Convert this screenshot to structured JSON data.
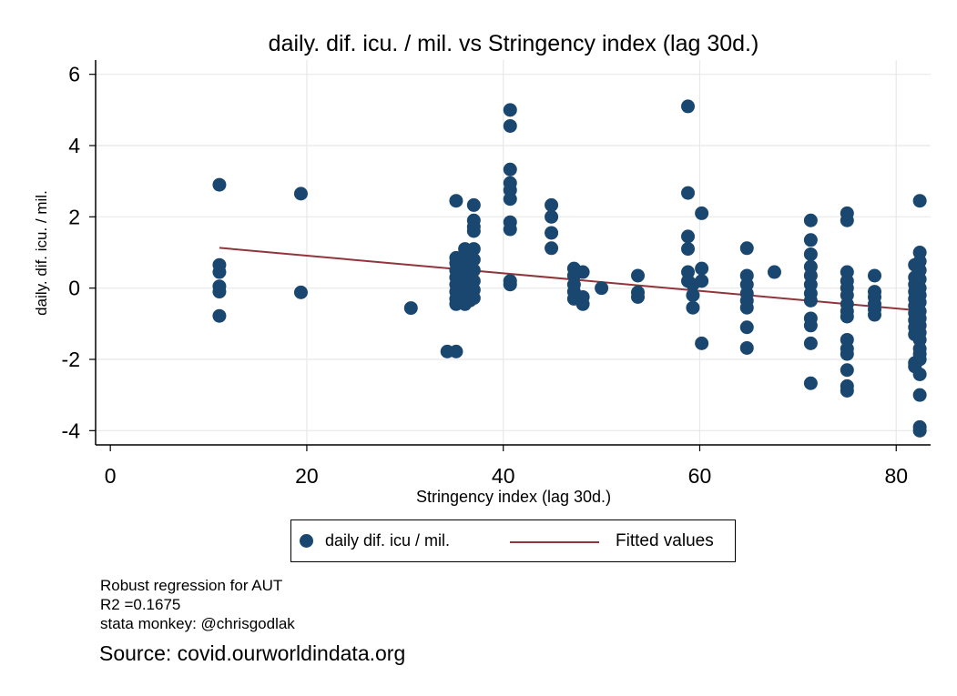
{
  "chart_data": {
    "type": "scatter",
    "title": "daily. dif. icu. / mil. vs Stringency index (lag 30d.)",
    "xlabel": "Stringency index (lag 30d.)",
    "ylabel": "daily. dif. icu. / mil.",
    "xlim": [
      -1.5,
      83.5
    ],
    "ylim": [
      -4.4,
      6.4
    ],
    "xticks": [
      0,
      20,
      40,
      60,
      80
    ],
    "yticks": [
      -4,
      -2,
      0,
      2,
      4,
      6
    ],
    "grid": true,
    "legend_position": "bottom",
    "colors": {
      "points": "#1a476f",
      "fit": "#90353b",
      "grid": "#e8e8e8"
    },
    "series": [
      {
        "name": "daily dif. icu / mil.",
        "kind": "scatter",
        "points": [
          [
            11.1,
            2.9
          ],
          [
            11.1,
            0.65
          ],
          [
            11.1,
            0.45
          ],
          [
            11.1,
            0.05
          ],
          [
            11.1,
            -0.1
          ],
          [
            11.1,
            -0.78
          ],
          [
            19.4,
            2.65
          ],
          [
            19.4,
            -0.12
          ],
          [
            30.6,
            -0.56
          ],
          [
            34.3,
            -1.78
          ],
          [
            35.2,
            -1.78
          ],
          [
            35.2,
            2.45
          ],
          [
            35.2,
            0.85
          ],
          [
            35.2,
            0.7
          ],
          [
            35.2,
            0.5
          ],
          [
            35.2,
            0.3
          ],
          [
            35.2,
            0.1
          ],
          [
            35.2,
            -0.1
          ],
          [
            35.2,
            -0.3
          ],
          [
            35.2,
            -0.45
          ],
          [
            35.7,
            0.8
          ],
          [
            35.7,
            0.4
          ],
          [
            35.7,
            0.0
          ],
          [
            35.7,
            -0.3
          ],
          [
            36.1,
            1.1
          ],
          [
            36.1,
            0.9
          ],
          [
            36.1,
            0.6
          ],
          [
            36.1,
            0.3
          ],
          [
            36.1,
            0.0
          ],
          [
            36.1,
            -0.2
          ],
          [
            36.1,
            -0.45
          ],
          [
            36.6,
            1.0
          ],
          [
            36.6,
            0.7
          ],
          [
            36.6,
            0.4
          ],
          [
            36.6,
            0.1
          ],
          [
            36.6,
            -0.15
          ],
          [
            36.6,
            -0.35
          ],
          [
            37.0,
            2.33
          ],
          [
            37.0,
            1.9
          ],
          [
            37.0,
            1.72
          ],
          [
            37.0,
            1.6
          ],
          [
            37.0,
            1.1
          ],
          [
            37.0,
            0.8
          ],
          [
            37.0,
            0.5
          ],
          [
            37.0,
            0.2
          ],
          [
            37.0,
            -0.05
          ],
          [
            37.0,
            -0.28
          ],
          [
            40.7,
            5.0
          ],
          [
            40.7,
            4.55
          ],
          [
            40.7,
            3.33
          ],
          [
            40.7,
            2.95
          ],
          [
            40.7,
            2.75
          ],
          [
            40.7,
            2.5
          ],
          [
            40.7,
            1.85
          ],
          [
            40.7,
            1.65
          ],
          [
            40.7,
            0.2
          ],
          [
            40.7,
            0.1
          ],
          [
            44.9,
            2.33
          ],
          [
            44.9,
            2.0
          ],
          [
            44.9,
            1.55
          ],
          [
            44.9,
            1.12
          ],
          [
            47.2,
            0.55
          ],
          [
            47.2,
            0.35
          ],
          [
            47.2,
            0.1
          ],
          [
            47.2,
            -0.1
          ],
          [
            47.2,
            -0.3
          ],
          [
            48.1,
            0.45
          ],
          [
            48.1,
            -0.25
          ],
          [
            48.1,
            -0.45
          ],
          [
            50.0,
            0.0
          ],
          [
            53.7,
            0.35
          ],
          [
            53.7,
            -0.12
          ],
          [
            53.7,
            -0.25
          ],
          [
            58.8,
            5.1
          ],
          [
            58.8,
            2.67
          ],
          [
            58.8,
            1.45
          ],
          [
            58.8,
            1.1
          ],
          [
            58.8,
            0.45
          ],
          [
            58.8,
            0.2
          ],
          [
            59.3,
            0.1
          ],
          [
            59.3,
            -0.2
          ],
          [
            59.3,
            -0.55
          ],
          [
            60.2,
            2.1
          ],
          [
            60.2,
            0.55
          ],
          [
            60.2,
            0.2
          ],
          [
            60.2,
            -1.55
          ],
          [
            64.8,
            1.12
          ],
          [
            64.8,
            0.35
          ],
          [
            64.8,
            0.1
          ],
          [
            64.8,
            -0.15
          ],
          [
            64.8,
            -0.35
          ],
          [
            64.8,
            -0.55
          ],
          [
            64.8,
            -1.1
          ],
          [
            64.8,
            -1.68
          ],
          [
            67.6,
            0.45
          ],
          [
            71.3,
            1.9
          ],
          [
            71.3,
            1.35
          ],
          [
            71.3,
            0.95
          ],
          [
            71.3,
            0.6
          ],
          [
            71.3,
            0.35
          ],
          [
            71.3,
            0.1
          ],
          [
            71.3,
            -0.15
          ],
          [
            71.3,
            -0.35
          ],
          [
            71.3,
            -0.85
          ],
          [
            71.3,
            -1.05
          ],
          [
            71.3,
            -1.55
          ],
          [
            71.3,
            -2.67
          ],
          [
            75.0,
            2.1
          ],
          [
            75.0,
            1.9
          ],
          [
            75.0,
            0.45
          ],
          [
            75.0,
            0.2
          ],
          [
            75.0,
            0.0
          ],
          [
            75.0,
            -0.2
          ],
          [
            75.0,
            -0.45
          ],
          [
            75.0,
            -0.65
          ],
          [
            75.0,
            -0.8
          ],
          [
            75.0,
            -1.45
          ],
          [
            75.0,
            -1.7
          ],
          [
            75.0,
            -1.85
          ],
          [
            75.0,
            -2.3
          ],
          [
            75.0,
            -2.75
          ],
          [
            75.0,
            -2.88
          ],
          [
            77.8,
            0.35
          ],
          [
            77.8,
            -0.1
          ],
          [
            77.8,
            -0.25
          ],
          [
            77.8,
            -0.45
          ],
          [
            77.8,
            -0.6
          ],
          [
            77.8,
            -0.75
          ],
          [
            81.9,
            0.65
          ],
          [
            81.9,
            0.3
          ],
          [
            81.9,
            0.1
          ],
          [
            81.9,
            -0.1
          ],
          [
            81.9,
            -0.3
          ],
          [
            81.9,
            -0.5
          ],
          [
            81.9,
            -0.7
          ],
          [
            81.9,
            -0.9
          ],
          [
            81.9,
            -1.1
          ],
          [
            81.9,
            -1.3
          ],
          [
            81.9,
            -2.1
          ],
          [
            81.9,
            -2.2
          ],
          [
            82.4,
            2.45
          ],
          [
            82.4,
            1.0
          ],
          [
            82.4,
            0.75
          ],
          [
            82.4,
            0.5
          ],
          [
            82.4,
            0.25
          ],
          [
            82.4,
            0.0
          ],
          [
            82.4,
            -0.2
          ],
          [
            82.4,
            -0.4
          ],
          [
            82.4,
            -0.65
          ],
          [
            82.4,
            -0.85
          ],
          [
            82.4,
            -1.05
          ],
          [
            82.4,
            -1.25
          ],
          [
            82.4,
            -1.45
          ],
          [
            82.4,
            -1.7
          ],
          [
            82.4,
            -1.85
          ],
          [
            82.4,
            -2.0
          ],
          [
            82.4,
            -2.42
          ],
          [
            82.4,
            -3.0
          ],
          [
            82.4,
            -3.9
          ],
          [
            82.4,
            -4.0
          ]
        ]
      },
      {
        "name": "Fitted values",
        "kind": "line",
        "points": [
          [
            11.1,
            1.13
          ],
          [
            82.4,
            -0.63
          ]
        ]
      }
    ]
  },
  "legend": {
    "item1": "daily dif. icu / mil.",
    "item2": "Fitted values"
  },
  "notes": {
    "line1": "Robust regression for AUT",
    "line2": "R2 =0.1675",
    "line3": "stata monkey: @chrisgodlak",
    "source": "Source: covid.ourworldindata.org"
  }
}
